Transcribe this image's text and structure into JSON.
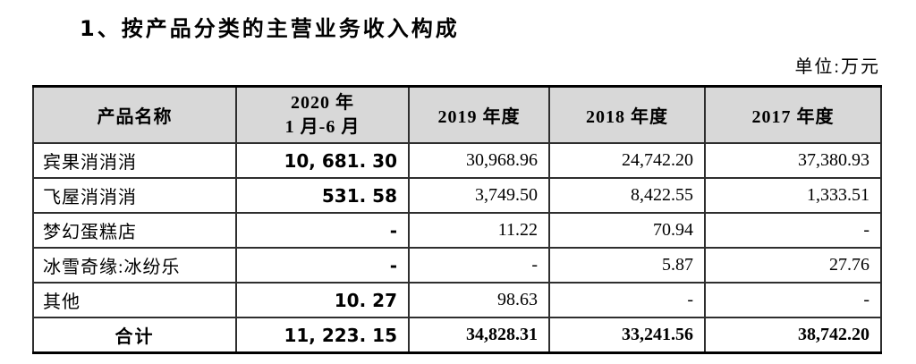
{
  "page": {
    "title": "1、按产品分类的主营业务收入构成",
    "unit_label": "单位:万元"
  },
  "colors": {
    "header_bg": "#d8d8d8",
    "border": "#2e2e2e",
    "thick_border": "#000000",
    "text": "#000000"
  },
  "table": {
    "header": {
      "product": "产品名称",
      "y2020_line1": "2020 年",
      "y2020_line2": "1 月-6 月",
      "y2019": "2019 年度",
      "y2018": "2018 年度",
      "y2017": "2017 年度"
    },
    "rows": [
      {
        "name": "宾果消消消",
        "v2020": "10, 681. 30",
        "v2019": "30,968.96",
        "v2018": "24,742.20",
        "v2017": "37,380.93"
      },
      {
        "name": "飞屋消消消",
        "v2020": "531. 58",
        "v2019": "3,749.50",
        "v2018": "8,422.55",
        "v2017": "1,333.51"
      },
      {
        "name": "梦幻蛋糕店",
        "v2020": "-",
        "v2019": "11.22",
        "v2018": "70.94",
        "v2017": "-"
      },
      {
        "name": "冰雪奇缘:冰纷乐",
        "v2020": "-",
        "v2019": "-",
        "v2018": "5.87",
        "v2017": "27.76"
      },
      {
        "name": "其他",
        "v2020": "10. 27",
        "v2019": "98.63",
        "v2018": "-",
        "v2017": "-"
      }
    ],
    "total": {
      "name": "合计",
      "v2020": "11, 223. 15",
      "v2019": "34,828.31",
      "v2018": "33,241.56",
      "v2017": "38,742.20"
    }
  }
}
